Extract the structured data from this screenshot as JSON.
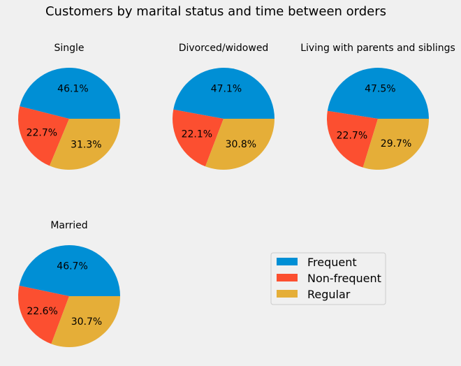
{
  "figure": {
    "title": "Customers by marital status and time between orders"
  },
  "colors": {
    "background": "#f0f0f0",
    "Frequent": "#008fd5",
    "Non-frequent": "#fc4f30",
    "Regular": "#e5ae38"
  },
  "legend": {
    "placement": "lower-right",
    "entries": [
      "Frequent",
      "Non-frequent",
      "Regular"
    ]
  },
  "chart_data": [
    {
      "type": "pie",
      "title": "Single",
      "categories": [
        "Frequent",
        "Non-frequent",
        "Regular"
      ],
      "values": [
        46.1,
        22.7,
        31.3
      ],
      "labels": [
        "46.1%",
        "22.7%",
        "31.3%"
      ]
    },
    {
      "type": "pie",
      "title": "Divorced/widowed",
      "categories": [
        "Frequent",
        "Non-frequent",
        "Regular"
      ],
      "values": [
        47.1,
        22.1,
        30.8
      ],
      "labels": [
        "47.1%",
        "22.1%",
        "30.8%"
      ]
    },
    {
      "type": "pie",
      "title": "Living with parents and siblings",
      "categories": [
        "Frequent",
        "Non-frequent",
        "Regular"
      ],
      "values": [
        47.5,
        22.7,
        29.7
      ],
      "labels": [
        "47.5%",
        "22.7%",
        "29.7%"
      ]
    },
    {
      "type": "pie",
      "title": "Married",
      "categories": [
        "Frequent",
        "Non-frequent",
        "Regular"
      ],
      "values": [
        46.7,
        22.6,
        30.7
      ],
      "labels": [
        "46.7%",
        "22.6%",
        "30.7%"
      ]
    }
  ]
}
